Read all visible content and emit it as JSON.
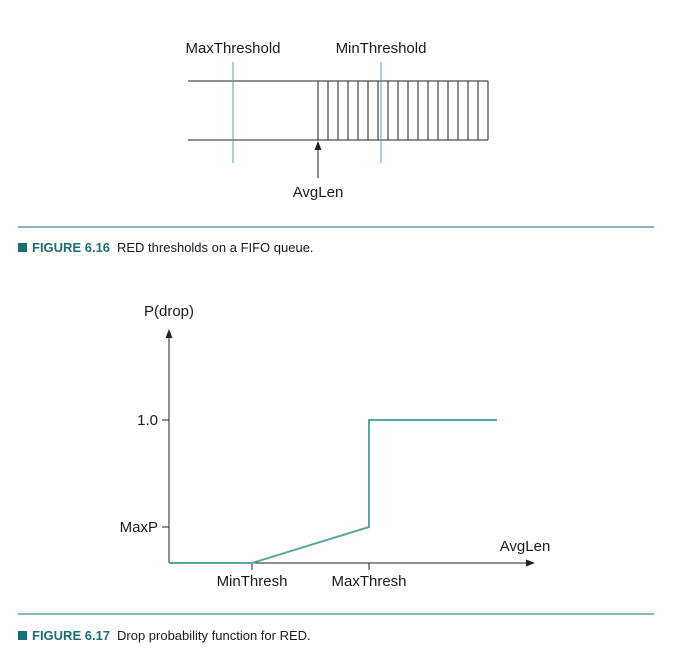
{
  "figure1": {
    "labels": {
      "max_threshold": "MaxThreshold",
      "min_threshold": "MinThreshold",
      "avg_len": "AvgLen"
    },
    "caption": {
      "number": "FIGURE 6.16",
      "text": "RED thresholds on a FIFO queue."
    }
  },
  "figure2": {
    "caption": {
      "number": "FIGURE 6.17",
      "text": "Drop probability function for RED."
    }
  },
  "colors": {
    "accent": "#5aa6a0",
    "caption_accent": "#1a6f72",
    "rule": "#1a6f72"
  },
  "chart_data": {
    "type": "line",
    "xlabel": "AvgLen",
    "ylabel": "P(drop)",
    "x_ticks": [
      "MinThresh",
      "MaxThresh"
    ],
    "y_ticks": [
      "MaxP",
      "1.0"
    ],
    "series": [
      {
        "points": [
          [
            "0",
            0
          ],
          [
            "MinThresh",
            0
          ],
          [
            "MaxThresh",
            "MaxP"
          ],
          [
            "MaxThresh",
            1.0
          ],
          [
            "end",
            1.0
          ]
        ]
      }
    ]
  }
}
